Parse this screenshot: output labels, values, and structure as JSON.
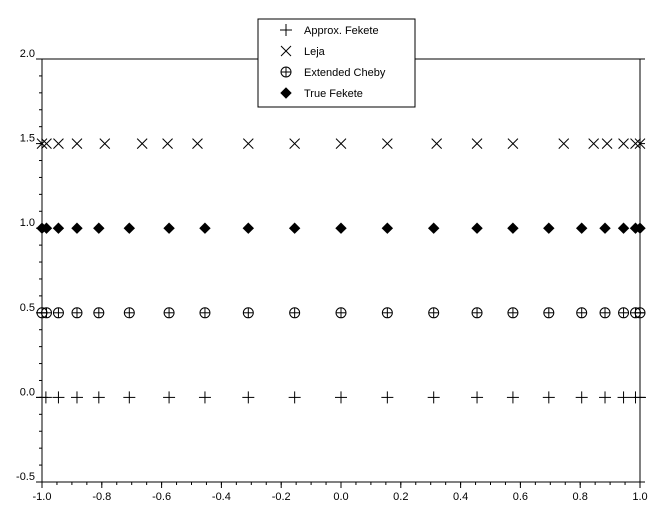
{
  "chart_data": {
    "type": "scatter",
    "title": "",
    "xlabel": "",
    "ylabel": "",
    "xlim": [
      -1.0,
      1.0
    ],
    "ylim": [
      -0.5,
      2.0
    ],
    "xticks": [
      "-1.0",
      "-0.8",
      "-0.6",
      "-0.4",
      "-0.2",
      "0.0",
      "0.2",
      "0.4",
      "0.6",
      "0.8",
      "1.0"
    ],
    "yticks": [
      "-0.5",
      "0.0",
      "0.5",
      "1.0",
      "1.5",
      "2.0"
    ],
    "xtick_values": [
      -1.0,
      -0.8,
      -0.6,
      -0.4,
      -0.2,
      0.0,
      0.2,
      0.4,
      0.6,
      0.8,
      1.0
    ],
    "ytick_values": [
      -0.5,
      0.0,
      0.5,
      1.0,
      1.5,
      2.0
    ],
    "grid": false,
    "legend_position": "top-center",
    "series": [
      {
        "name": "Approx. Fekete",
        "marker": "plus",
        "y": 0.0,
        "x": [
          -1.0,
          -0.987,
          -0.945,
          -0.883,
          -0.81,
          -0.708,
          -0.575,
          -0.455,
          -0.31,
          -0.155,
          0.0,
          0.155,
          0.31,
          0.455,
          0.575,
          0.695,
          0.805,
          0.883,
          0.945,
          0.985,
          1.0
        ]
      },
      {
        "name": "Leja",
        "marker": "x",
        "y": 1.5,
        "x": [
          -1.0,
          -0.985,
          -0.945,
          -0.883,
          -0.79,
          -0.665,
          -0.58,
          -0.48,
          -0.31,
          -0.155,
          0.0,
          0.155,
          0.32,
          0.455,
          0.575,
          0.745,
          0.845,
          0.89,
          0.945,
          0.985,
          1.0
        ]
      },
      {
        "name": "Extended Cheby",
        "marker": "circle-plus",
        "y": 0.5,
        "x": [
          -1.0,
          -0.985,
          -0.945,
          -0.883,
          -0.81,
          -0.708,
          -0.575,
          -0.455,
          -0.31,
          -0.155,
          0.0,
          0.155,
          0.31,
          0.455,
          0.575,
          0.695,
          0.805,
          0.883,
          0.945,
          0.985,
          1.0
        ]
      },
      {
        "name": "True Fekete",
        "marker": "diamond",
        "y": 1.0,
        "x": [
          -1.0,
          -0.985,
          -0.945,
          -0.883,
          -0.81,
          -0.708,
          -0.575,
          -0.455,
          -0.31,
          -0.155,
          0.0,
          0.155,
          0.31,
          0.455,
          0.575,
          0.695,
          0.805,
          0.883,
          0.945,
          0.985,
          1.0
        ]
      }
    ]
  }
}
